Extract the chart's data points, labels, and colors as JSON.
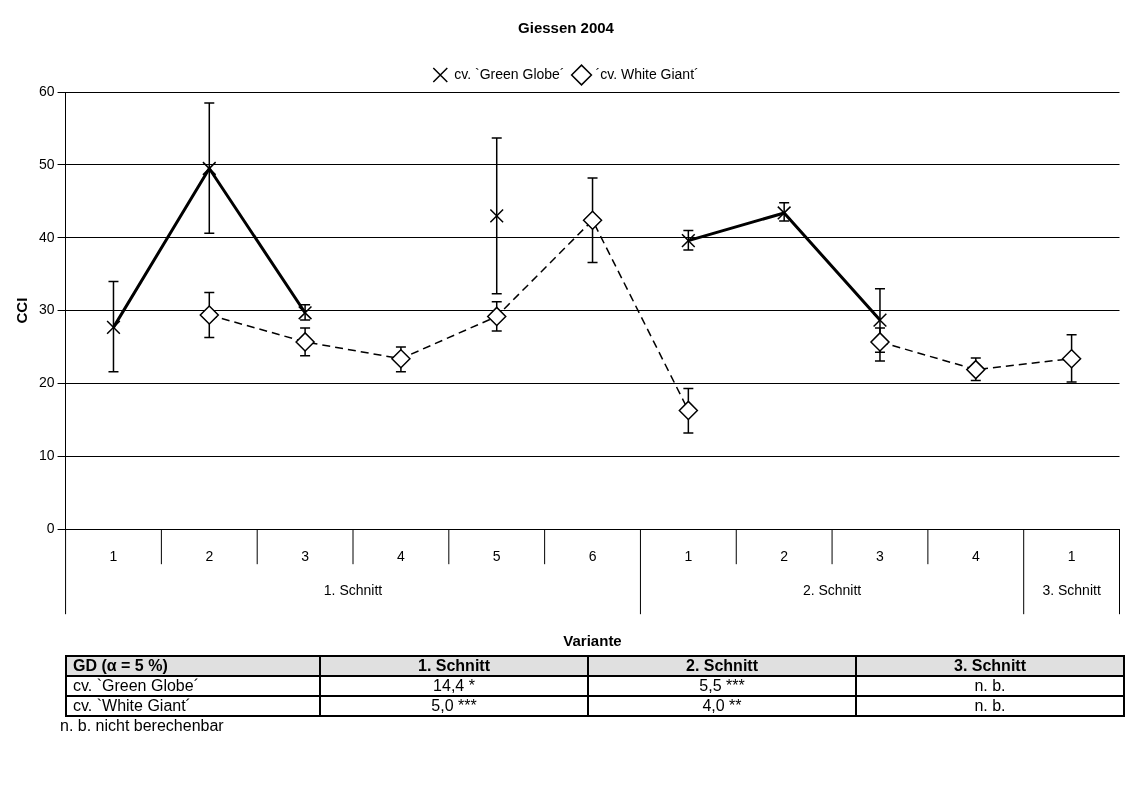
{
  "chart_data": {
    "type": "line",
    "title": "Giessen 2004",
    "xlabel": "Variante",
    "ylabel": "CCI",
    "categories": [
      "1",
      "2",
      "3",
      "4",
      "5",
      "6",
      "1",
      "2",
      "3",
      "4",
      "1"
    ],
    "ylim": [
      0,
      60
    ],
    "yticks": [
      0,
      10,
      20,
      30,
      40,
      50,
      60
    ],
    "grid": "y",
    "legend": "top",
    "series": [
      {
        "name": "cv. `Green Globe´",
        "color": "#000000",
        "marker": "cross",
        "line_style": "solid",
        "values": [
          27.7,
          49.5,
          29.7,
          null,
          43.0,
          null,
          39.6,
          43.4,
          28.7,
          null,
          null
        ],
        "errors": [
          [
            21.6,
            34.0
          ],
          [
            40.6,
            58.5
          ],
          [
            28.7,
            30.8
          ],
          null,
          [
            32.3,
            53.7
          ],
          null,
          [
            38.3,
            41.0
          ],
          [
            42.3,
            44.8
          ],
          [
            24.3,
            33.0
          ],
          null,
          null
        ]
      },
      {
        "name": "´cv. White Giant´",
        "color": "#000000",
        "marker": "diamond",
        "line_style": "dashed",
        "values": [
          null,
          29.4,
          25.7,
          23.4,
          29.2,
          42.4,
          16.3,
          null,
          25.7,
          21.9,
          23.4
        ],
        "errors": [
          null,
          [
            26.3,
            32.5
          ],
          [
            23.8,
            27.6
          ],
          [
            21.6,
            25.0
          ],
          [
            27.2,
            31.2
          ],
          [
            36.6,
            48.2
          ],
          [
            13.2,
            19.3
          ],
          null,
          [
            23.1,
            27.6
          ],
          [
            20.4,
            23.5
          ],
          [
            20.2,
            26.7
          ]
        ]
      }
    ],
    "annotations": [
      "1. Schnitt",
      "2. Schnitt",
      "3. Schnitt",
      "GD (α = 5 %)",
      "1. Schnitt",
      "2. Schnitt",
      "3. Schnitt",
      "cv. `Green Globe´",
      "14,4 *",
      "5,5 ***",
      "n. b.",
      "cv. `White Giant´",
      "5,0 ***",
      "4,0 **",
      "n. b.",
      "n. b. nicht berechenbar"
    ]
  }
}
